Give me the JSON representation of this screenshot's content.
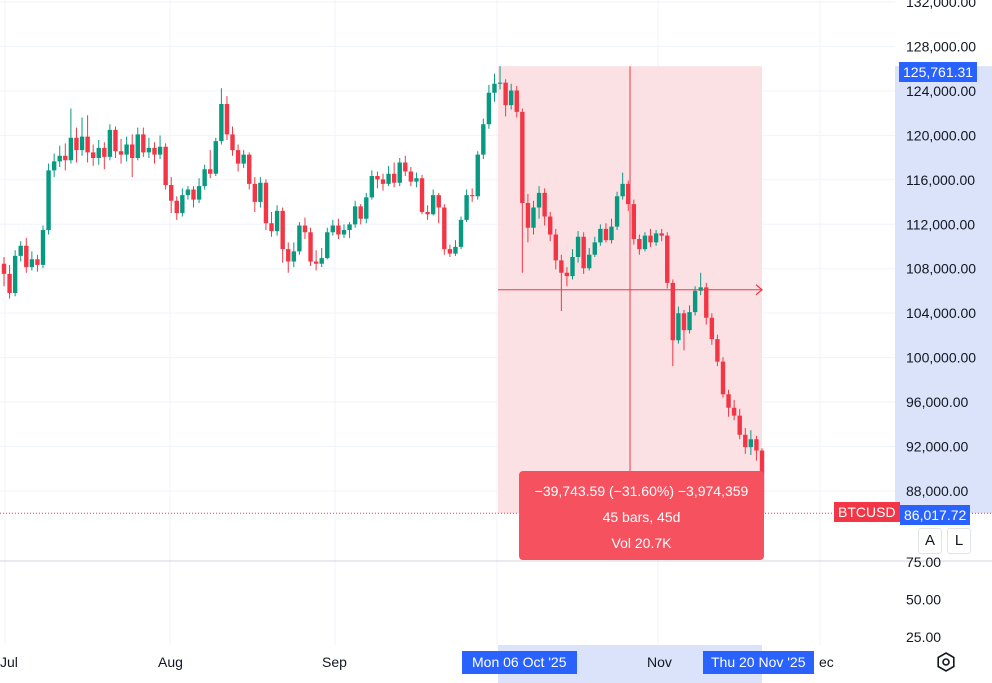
{
  "chart_data": {
    "type": "candlestick",
    "symbol": "BTCUSD",
    "y_ticks": [
      "132,000.00",
      "128,000.00",
      "124,000.00",
      "120,000.00",
      "116,000.00",
      "112,000.00",
      "108,000.00",
      "104,000.00",
      "100,000.00",
      "96,000.00",
      "92,000.00",
      "88,000.00"
    ],
    "volume_ticks": [
      "75.00",
      "50.00",
      "25.00"
    ],
    "x_ticks": [
      "Jul",
      "Aug",
      "Sep",
      "Nov",
      "ec"
    ],
    "start_date_label": "Mon 06 Oct '25",
    "end_date_label": "Thu 20 Nov '25",
    "last_price": "86,017.72",
    "top_price": "125,761.31",
    "ylim": [
      86000,
      132000
    ],
    "colors": {
      "up": "#089981",
      "down": "#f23645",
      "range_fill": "#fcdcdf",
      "range_line": "#f23645",
      "axis_hl": "#d1dcf9",
      "date_tag": "#2962ff",
      "symbol_tag": "#f23645"
    },
    "measurement": {
      "change": "−39,743.59 (−31.60%) −3,974,359",
      "bars": "45 bars, 45d",
      "volume": "Vol 20.7K"
    },
    "candles": [
      [
        108200,
        107300,
        108800,
        106200
      ],
      [
        107300,
        105600,
        108100,
        105100
      ],
      [
        105600,
        108900,
        109400,
        105300
      ],
      [
        108900,
        109800,
        110200,
        108400
      ],
      [
        109800,
        107900,
        110500,
        107400
      ],
      [
        107900,
        108600,
        109300,
        107600
      ],
      [
        108600,
        108100,
        109000,
        107500
      ],
      [
        108100,
        111200,
        111600,
        107800
      ],
      [
        111200,
        116500,
        117100,
        110800
      ],
      [
        116500,
        117300,
        118000,
        115900
      ],
      [
        117300,
        117800,
        118700,
        116800
      ],
      [
        117800,
        117400,
        118900,
        116500
      ],
      [
        117400,
        119400,
        122000,
        117100
      ],
      [
        119400,
        118300,
        120300,
        117200
      ],
      [
        118300,
        119500,
        121200,
        117800
      ],
      [
        119500,
        118100,
        121400,
        117200
      ],
      [
        118100,
        117600,
        118800,
        116900
      ],
      [
        117600,
        118500,
        119200,
        117000
      ],
      [
        118500,
        117700,
        119000,
        116600
      ],
      [
        117700,
        120100,
        120600,
        117400
      ],
      [
        120100,
        118200,
        120400,
        117600
      ],
      [
        118200,
        117900,
        119300,
        117100
      ],
      [
        117900,
        118800,
        119500,
        117300
      ],
      [
        118800,
        117600,
        119700,
        115900
      ],
      [
        117600,
        119700,
        120300,
        117400
      ],
      [
        119700,
        118100,
        120300,
        117700
      ],
      [
        118100,
        118500,
        119400,
        117600
      ],
      [
        118500,
        117900,
        119000,
        117100
      ],
      [
        117900,
        118600,
        119600,
        117500
      ],
      [
        118600,
        115200,
        118900,
        114800
      ],
      [
        115200,
        113800,
        115900,
        112700
      ],
      [
        113800,
        112700,
        114200,
        112100
      ],
      [
        112700,
        114300,
        114900,
        112400
      ],
      [
        114300,
        114800,
        115100,
        113900
      ],
      [
        114800,
        113900,
        115100,
        113200
      ],
      [
        113900,
        115100,
        115800,
        113600
      ],
      [
        115100,
        116600,
        117000,
        114800
      ],
      [
        116600,
        116200,
        118300,
        115800
      ],
      [
        116200,
        119100,
        119400,
        116000
      ],
      [
        119100,
        122400,
        123800,
        118800
      ],
      [
        122400,
        119700,
        123100,
        119200
      ],
      [
        119700,
        118300,
        120400,
        117800
      ],
      [
        118300,
        117100,
        118800,
        116400
      ],
      [
        117100,
        117900,
        118300,
        116700
      ],
      [
        117900,
        115300,
        118100,
        114800
      ],
      [
        115300,
        113700,
        115900,
        112800
      ],
      [
        113700,
        115400,
        115900,
        113200
      ],
      [
        115400,
        111800,
        115700,
        111200
      ],
      [
        111800,
        111100,
        112800,
        110600
      ],
      [
        111100,
        112900,
        113400,
        110700
      ],
      [
        112900,
        109500,
        113200,
        108300
      ],
      [
        109500,
        108400,
        110100,
        107400
      ],
      [
        108400,
        109300,
        110100,
        107900
      ],
      [
        109300,
        111600,
        111900,
        109000
      ],
      [
        111600,
        111000,
        112300,
        110400
      ],
      [
        111000,
        108400,
        111400,
        108000
      ],
      [
        108400,
        108200,
        109400,
        107600
      ],
      [
        108200,
        108700,
        109600,
        107900
      ],
      [
        108700,
        111000,
        111400,
        108600
      ],
      [
        111000,
        111600,
        112100,
        110700
      ],
      [
        111600,
        110800,
        112200,
        110400
      ],
      [
        110800,
        111200,
        111700,
        110500
      ],
      [
        111200,
        111700,
        111900,
        110500
      ],
      [
        111700,
        113300,
        113800,
        111400
      ],
      [
        113300,
        112200,
        113500,
        111700
      ],
      [
        112200,
        114100,
        114500,
        111800
      ],
      [
        114100,
        116000,
        116500,
        113900
      ],
      [
        116000,
        115700,
        116400,
        114900
      ],
      [
        115700,
        115300,
        116200,
        114700
      ],
      [
        115300,
        116200,
        116900,
        115100
      ],
      [
        116200,
        115400,
        117200,
        115000
      ],
      [
        115400,
        117200,
        117600,
        115100
      ],
      [
        117200,
        116400,
        117800,
        116000
      ],
      [
        116400,
        115500,
        116800,
        115100
      ],
      [
        115500,
        115800,
        116300,
        115000
      ],
      [
        115800,
        112800,
        116100,
        112600
      ],
      [
        112800,
        112600,
        113400,
        112100
      ],
      [
        112600,
        114300,
        114800,
        112500
      ],
      [
        114300,
        113200,
        114500,
        111800
      ],
      [
        113200,
        109500,
        113500,
        109000
      ],
      [
        109500,
        109100,
        109900,
        108800
      ],
      [
        109100,
        109700,
        110300,
        108900
      ],
      [
        109700,
        112100,
        112400,
        109500
      ],
      [
        112100,
        114300,
        114800,
        111900
      ],
      [
        114300,
        114200,
        114900,
        113700
      ],
      [
        114200,
        117900,
        118200,
        113900
      ],
      [
        117900,
        120600,
        121100,
        117500
      ],
      [
        120600,
        123400,
        124100,
        120200
      ],
      [
        123400,
        124200,
        125100,
        122600
      ],
      [
        124200,
        124300,
        125761,
        123700
      ],
      [
        124300,
        122300,
        124600,
        121300
      ],
      [
        122300,
        123600,
        124200,
        121900
      ],
      [
        123600,
        121700,
        124000,
        121200
      ],
      [
        121700,
        113600,
        122000,
        107400
      ],
      [
        113600,
        111400,
        114400,
        110100
      ],
      [
        111400,
        113200,
        113800,
        110800
      ],
      [
        113200,
        114500,
        115100,
        112200
      ],
      [
        114500,
        112400,
        114900,
        111600
      ],
      [
        112400,
        110800,
        112800,
        110200
      ],
      [
        110800,
        108500,
        111300,
        107700
      ],
      [
        108500,
        107400,
        109000,
        104000
      ],
      [
        107400,
        107100,
        107900,
        106200
      ],
      [
        107100,
        108800,
        109500,
        106800
      ],
      [
        108800,
        110600,
        111100,
        108300
      ],
      [
        110600,
        107800,
        111000,
        107300
      ],
      [
        107800,
        109000,
        109600,
        107600
      ],
      [
        109000,
        110100,
        110600,
        108800
      ],
      [
        110100,
        111300,
        111700,
        109800
      ],
      [
        111300,
        110300,
        111800,
        110100
      ],
      [
        110300,
        111500,
        112200,
        110000
      ],
      [
        111500,
        114200,
        114600,
        111200
      ],
      [
        114200,
        115300,
        116300,
        113900
      ],
      [
        115300,
        113500,
        115600,
        112900
      ],
      [
        113500,
        110400,
        113900,
        109900
      ],
      [
        110400,
        109500,
        110800,
        109000
      ],
      [
        109500,
        110700,
        111000,
        109300
      ],
      [
        110700,
        110100,
        111300,
        109700
      ],
      [
        110100,
        110900,
        111200,
        109800
      ],
      [
        110900,
        110700,
        111300,
        110200
      ],
      [
        110700,
        106500,
        111000,
        106000
      ],
      [
        106500,
        101400,
        106800,
        99100
      ],
      [
        101400,
        103800,
        104400,
        101100
      ],
      [
        103800,
        102300,
        104100,
        100500
      ],
      [
        102300,
        103900,
        104500,
        102000
      ],
      [
        103900,
        105800,
        106200,
        103600
      ],
      [
        105800,
        106100,
        107400,
        105400
      ],
      [
        106100,
        103400,
        106500,
        102800
      ],
      [
        103400,
        101500,
        103800,
        101000
      ],
      [
        101500,
        99500,
        101900,
        99100
      ],
      [
        99500,
        96600,
        99900,
        96300
      ],
      [
        96600,
        95400,
        97000,
        94600
      ],
      [
        95400,
        94700,
        96100,
        94300
      ],
      [
        94700,
        93000,
        95300,
        92600
      ],
      [
        93000,
        91900,
        93600,
        91300
      ],
      [
        91900,
        92600,
        93400,
        91200
      ],
      [
        92600,
        91600,
        92900,
        90700
      ],
      [
        91600,
        86018,
        91800,
        86000
      ]
    ]
  }
}
